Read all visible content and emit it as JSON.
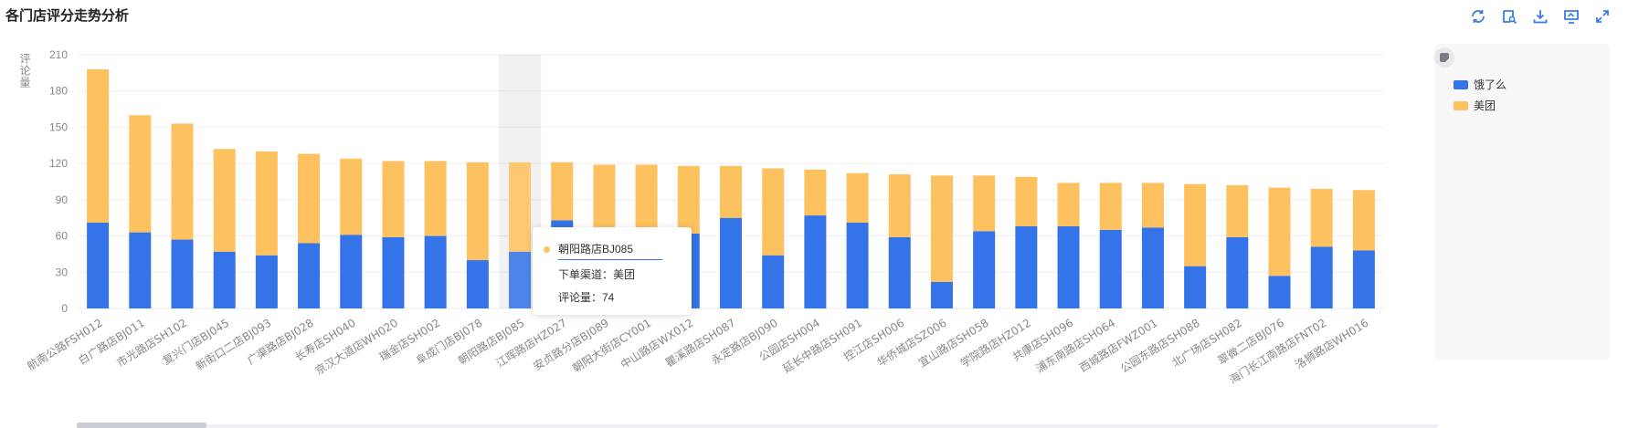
{
  "title": "各门店评分走势分析",
  "toolbar": {
    "icons": [
      "refresh-icon",
      "zoom-icon",
      "download-icon",
      "data-view-icon",
      "fullscreen-icon"
    ],
    "color": "#3a7be8"
  },
  "legend": [
    {
      "name": "饿了么",
      "color": "#3474e8"
    },
    {
      "name": "美团",
      "color": "#fec15f"
    }
  ],
  "tooltip": {
    "name": "朝阳路店BJ085",
    "channel_label": "下单渠道：美团",
    "value_label": "评论量：74"
  },
  "chart_data": {
    "type": "bar",
    "stacked": true,
    "ylabel": "评论量",
    "ylim": [
      0,
      210
    ],
    "yticks": [
      0,
      30,
      60,
      90,
      120,
      150,
      180,
      210
    ],
    "grid": true,
    "legend_position": "right",
    "highlighted_category": "朝阳路店BJ085",
    "categories": [
      "航南公路FSH012",
      "白广路店BJ011",
      "市光路店SH102",
      "复兴门店BJ045",
      "新街口二店BJ093",
      "广渠路店BJ028",
      "长寿店SH040",
      "京汉大道店WH020",
      "瑞金店SH002",
      "阜成门店BJ078",
      "朝阳路店BJ085",
      "江晖路店HZ027",
      "安贞路分店BJ089",
      "朝阳大街店CY001",
      "中山路店WX012",
      "瞿溪路店SH087",
      "永定路店BJ090",
      "公园店SH004",
      "延长中路店SH091",
      "控江店SH006",
      "华侨城店SZ006",
      "宜山路店SH058",
      "学院路店HZ012",
      "共康店SH096",
      "浦东南路店SH064",
      "西城路店FWZ001",
      "公园东路店SH088",
      "北广场店SH082",
      "翠微二店BJ076",
      "海门长江南路店FNT02",
      "洛狮路店WH016"
    ],
    "series": [
      {
        "name": "饿了么",
        "values": [
          71,
          63,
          57,
          47,
          44,
          54,
          61,
          59,
          60,
          40,
          47,
          73,
          60,
          65,
          62,
          75,
          44,
          77,
          71,
          59,
          22,
          64,
          68,
          68,
          65,
          67,
          35,
          59,
          27,
          51,
          48
        ]
      },
      {
        "name": "美团",
        "values": [
          127,
          97,
          96,
          85,
          86,
          74,
          63,
          63,
          62,
          81,
          74,
          48,
          59,
          54,
          56,
          43,
          72,
          38,
          41,
          52,
          88,
          46,
          41,
          36,
          39,
          37,
          68,
          43,
          73,
          48,
          50
        ]
      }
    ]
  }
}
